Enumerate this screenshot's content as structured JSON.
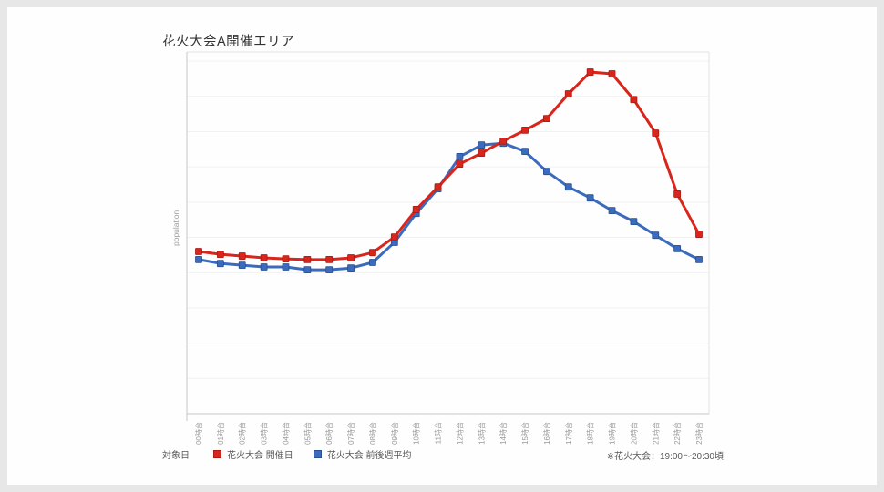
{
  "page": {
    "bg_color": "#e7e7e7",
    "card_color": "#fefefe"
  },
  "chart": {
    "title": "花火大会A開催エリア",
    "y_axis_label": "population",
    "legend": {
      "target_label": "対象日"
    },
    "note": "※花火大会：19:00〜20:30頃"
  },
  "chart_data": {
    "type": "line",
    "title": "花火大会A開催エリア",
    "xlabel": "",
    "ylabel": "population",
    "ylim": [
      0,
      102.6
    ],
    "grid": "horizontal-only",
    "legend_position": "bottom-left",
    "x_categories": [
      "00時台",
      "01時台",
      "02時台",
      "03時台",
      "04時台",
      "05時台",
      "06時台",
      "07時台",
      "08時台",
      "09時台",
      "10時台",
      "11時台",
      "12時台",
      "13時台",
      "14時台",
      "15時台",
      "16時台",
      "17時台",
      "18時台",
      "19時台",
      "20時台",
      "21時台",
      "22時台",
      "23時台"
    ],
    "series": [
      {
        "name": "花火大会 開催日",
        "color": "#d9251b",
        "marker_edge": "#a81c14",
        "values": [
          46.0,
          45.2,
          44.7,
          44.2,
          43.9,
          43.7,
          43.7,
          44.2,
          45.7,
          50.1,
          57.9,
          64.3,
          70.8,
          73.9,
          77.3,
          80.4,
          83.7,
          90.7,
          96.9,
          96.4,
          89.1,
          79.6,
          62.3,
          50.9
        ]
      },
      {
        "name": "花火大会 前後週平均",
        "color": "#3a6bbd",
        "marker_edge": "#2a4f8f",
        "values": [
          43.7,
          42.6,
          42.1,
          41.6,
          41.6,
          40.8,
          40.8,
          41.3,
          42.9,
          48.6,
          56.8,
          63.8,
          72.9,
          76.2,
          76.7,
          74.4,
          68.7,
          64.3,
          61.2,
          57.6,
          54.5,
          50.6,
          46.8,
          43.7
        ]
      }
    ],
    "axis_colors": {
      "gridline": "#f1f1f1",
      "axis_line": "#c6c6c6",
      "border_light": "#e2e2e2",
      "tick_label": "#9b9b9b"
    }
  }
}
